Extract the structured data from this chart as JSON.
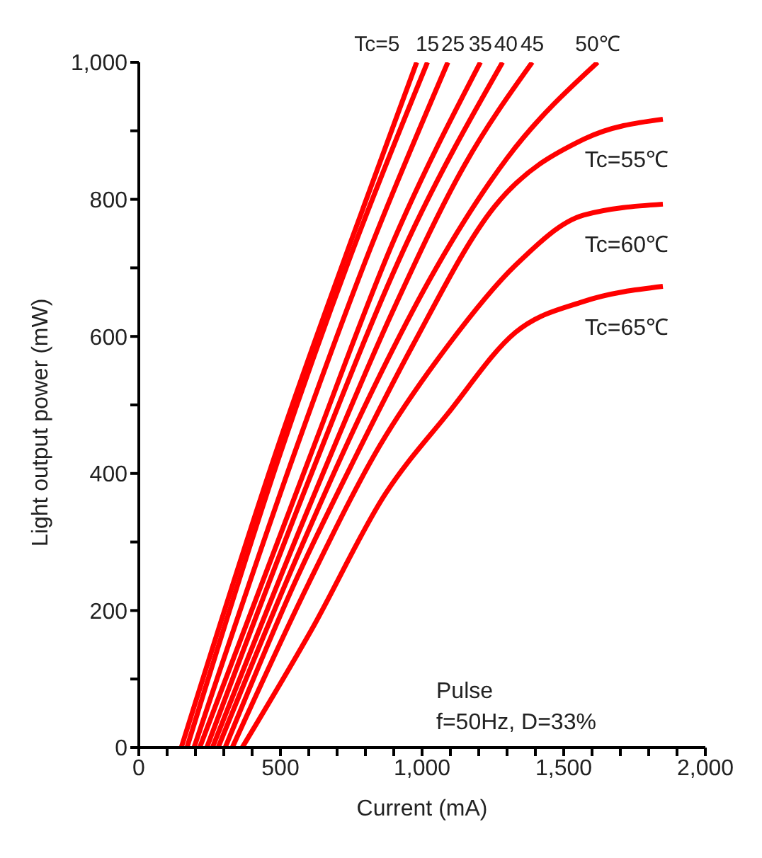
{
  "chart_data": {
    "type": "line",
    "xlabel": "Current (mA)",
    "ylabel": "Light output power (mW)",
    "xlim": [
      0,
      2000
    ],
    "ylim": [
      0,
      1000
    ],
    "xticks": [
      0,
      {
        "value": 100,
        "label": null
      },
      {
        "value": 200,
        "label": null
      },
      {
        "value": 300,
        "label": null
      },
      {
        "value": 400,
        "label": null
      },
      500,
      {
        "value": 600,
        "label": null
      },
      {
        "value": 700,
        "label": null
      },
      {
        "value": 800,
        "label": null
      },
      {
        "value": 900,
        "label": null
      },
      {
        "value": 1000,
        "label": "1,000"
      },
      {
        "value": 1100,
        "label": null
      },
      {
        "value": 1200,
        "label": null
      },
      {
        "value": 1300,
        "label": null
      },
      {
        "value": 1400,
        "label": null
      },
      {
        "value": 1500,
        "label": "1,500"
      },
      {
        "value": 1600,
        "label": null
      },
      {
        "value": 1700,
        "label": null
      },
      {
        "value": 1800,
        "label": null
      },
      {
        "value": 1900,
        "label": null
      },
      {
        "value": 2000,
        "label": "2,000"
      }
    ],
    "yticks": [
      0,
      {
        "value": 100,
        "label": null
      },
      200,
      {
        "value": 300,
        "label": null
      },
      400,
      {
        "value": 500,
        "label": null
      },
      600,
      {
        "value": 700,
        "label": null
      },
      800,
      {
        "value": 900,
        "label": null
      },
      {
        "value": 1000,
        "label": "1,000"
      }
    ],
    "marker": "none",
    "line_style": "solid",
    "series": [
      {
        "name": "Tc=5",
        "color": "#ff0000",
        "x": [
          150,
          500,
          750,
          981
        ],
        "values": [
          0,
          450,
          740,
          1000
        ]
      },
      {
        "name": "15",
        "color": "#ff0000",
        "x": [
          170,
          500,
          750,
          1019
        ],
        "values": [
          0,
          430,
          720,
          1000
        ]
      },
      {
        "name": "25",
        "color": "#ff0000",
        "x": [
          195,
          550,
          800,
          1091
        ],
        "values": [
          0,
          430,
          710,
          1000
        ]
      },
      {
        "name": "35",
        "color": "#ff0000",
        "x": [
          215,
          600,
          900,
          1206
        ],
        "values": [
          0,
          420,
          740,
          1000
        ]
      },
      {
        "name": "40",
        "color": "#ff0000",
        "x": [
          240,
          600,
          950,
          1284
        ],
        "values": [
          0,
          390,
          740,
          1000
        ]
      },
      {
        "name": "45",
        "color": "#ff0000",
        "x": [
          260,
          600,
          900,
          1150,
          1389
        ],
        "values": [
          0,
          350,
          640,
          850,
          1000
        ]
      },
      {
        "name": "50℃",
        "color": "#ff0000",
        "x": [
          280,
          550,
          800,
          1050,
          1300,
          1620
        ],
        "values": [
          0,
          270,
          500,
          700,
          860,
          1000
        ]
      },
      {
        "name": "Tc=55℃",
        "color": "#ff0000",
        "x": [
          305,
          550,
          760,
          966,
          1255,
          1572,
          1850
        ],
        "values": [
          0,
          240,
          420,
          586,
          789,
          888,
          917
        ]
      },
      {
        "name": "Tc=60℃",
        "color": "#ff0000",
        "x": [
          330,
          600,
          850,
          1090,
          1330,
          1570,
          1850
        ],
        "values": [
          0,
          240,
          440,
          586,
          704,
          777,
          793
        ]
      },
      {
        "name": "Tc=65℃",
        "color": "#ff0000",
        "x": [
          365,
          610,
          870,
          1090,
          1330,
          1570,
          1850
        ],
        "values": [
          0,
          172,
          370,
          487,
          606,
          651,
          673
        ]
      }
    ],
    "annotations": [
      "Pulse",
      "f=50Hz, D=33%"
    ]
  }
}
